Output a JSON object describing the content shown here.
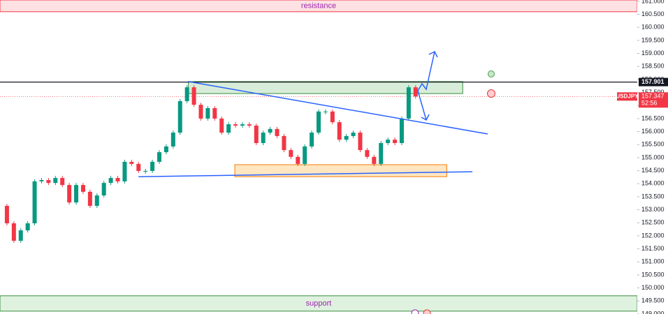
{
  "chart_data": {
    "type": "candlestick",
    "xlim": [
      0,
      92
    ],
    "ylim": [
      149,
      161.05
    ],
    "yticks": [
      {
        "value": 161,
        "label": "161.000"
      },
      {
        "value": 160.5,
        "label": "160.500"
      },
      {
        "value": 160,
        "label": "160.000"
      },
      {
        "value": 159.5,
        "label": "159.500"
      },
      {
        "value": 159,
        "label": "159.000"
      },
      {
        "value": 158.5,
        "label": "158.500"
      },
      {
        "value": 158,
        "label": "158.000"
      },
      {
        "value": 157.5,
        "label": "157.500"
      },
      {
        "value": 157,
        "label": "157.000"
      },
      {
        "value": 156.5,
        "label": "156.500"
      },
      {
        "value": 156,
        "label": "156.000"
      },
      {
        "value": 155.5,
        "label": "155.500"
      },
      {
        "value": 155,
        "label": "155.000"
      },
      {
        "value": 154.5,
        "label": "154.500"
      },
      {
        "value": 154,
        "label": "154.000"
      },
      {
        "value": 153.5,
        "label": "153.500"
      },
      {
        "value": 153,
        "label": "153.000"
      },
      {
        "value": 152.5,
        "label": "152.500"
      },
      {
        "value": 152,
        "label": "152.000"
      },
      {
        "value": 151.5,
        "label": "151.500"
      },
      {
        "value": 151,
        "label": "151.000"
      },
      {
        "value": 150.5,
        "label": "150.500"
      },
      {
        "value": 150,
        "label": "150.000"
      },
      {
        "value": 149.5,
        "label": "149.500"
      },
      {
        "value": 149,
        "label": "149.000"
      }
    ],
    "series": [
      {
        "name": "USDJPY",
        "color_up": "#089981",
        "color_down": "#f23645",
        "close": [
          153.15,
          152.48,
          151.81,
          152.21,
          152.48,
          154.09,
          154.14,
          154.03,
          154.22,
          153.95,
          153.28,
          153.95,
          153.69,
          153.15,
          153.55,
          154.03,
          154.22,
          154.09,
          154.84,
          154.76,
          154.49,
          154.49,
          154.84,
          155.21,
          155.43,
          155.96,
          157.17,
          157.7,
          157.03,
          156.5,
          156.9,
          156.5,
          155.96,
          156.28,
          156.23,
          156.28,
          156.23,
          155.56,
          155.96,
          156.1,
          155.83,
          155.29,
          155.03,
          154.76,
          155.43,
          155.96,
          156.77,
          156.77,
          156.36,
          155.69,
          155.83,
          155.96,
          155.29,
          155.03,
          154.76,
          155.56,
          155.69,
          155.56,
          156.5,
          157.7,
          157.347
        ]
      }
    ],
    "last_price": {
      "value": 157.347,
      "countdown": "52:56",
      "color": "#f23645"
    },
    "level": {
      "value": 157.901,
      "color": "#131722"
    },
    "zones": [
      {
        "label": "resistance",
        "x": [
          0,
          92
        ],
        "y": [
          160.6,
          161.05
        ],
        "fill": "rgba(242,54,69,0.15)",
        "border": "#f23645",
        "text_color": "#9c27b0"
      },
      {
        "label": "support",
        "x": [
          0,
          92
        ],
        "y": [
          149.11,
          149.7
        ],
        "fill": "rgba(76,175,80,0.18)",
        "border": "#388e3c",
        "text_color": "#9c27b0"
      },
      {
        "x": [
          27.2,
          66.8
        ],
        "y": [
          157.46,
          157.92
        ],
        "fill": "rgba(76,175,80,0.22)",
        "border": "#388e3c"
      },
      {
        "x": [
          33.9,
          64.5
        ],
        "y": [
          154.27,
          154.73
        ],
        "fill": "rgba(255,183,77,0.35)",
        "border": "#f57c00"
      }
    ],
    "trendlines": [
      {
        "x": [
          27.2,
          70.4
        ],
        "y": [
          157.92,
          155.91
        ],
        "color": "#2962ff"
      },
      {
        "x": [
          20.0,
          68.2
        ],
        "y": [
          154.27,
          154.46
        ],
        "color": "#2962ff"
      }
    ]
  }
}
